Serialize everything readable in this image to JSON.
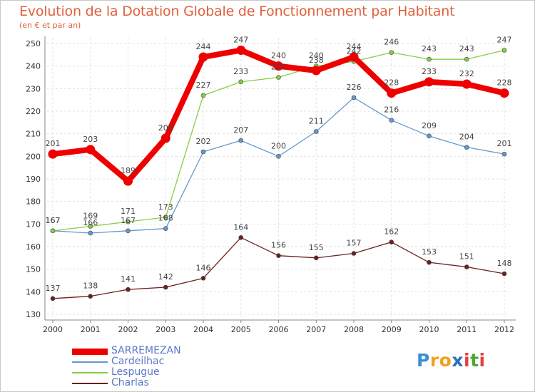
{
  "header": {
    "title": "Evolution de la Dotation Globale de Fonctionnement par Habitant",
    "subtitle": "(en € et par an)"
  },
  "chart_data": {
    "type": "line",
    "title": "Evolution de la Dotation Globale de Fonctionnement par Habitant",
    "subtitle": "(en € et par an)",
    "xlabel": "",
    "ylabel": "",
    "x": [
      2000,
      2001,
      2002,
      2003,
      2004,
      2005,
      2006,
      2007,
      2008,
      2009,
      2010,
      2011,
      2012
    ],
    "ylim": [
      130,
      250
    ],
    "yticks": [
      130,
      140,
      150,
      160,
      170,
      180,
      190,
      200,
      210,
      220,
      230,
      240,
      250
    ],
    "grid": true,
    "legend_position": "bottom-left",
    "series": [
      {
        "name": "SARREMEZAN",
        "color": "#ee0000",
        "values": [
          201,
          203,
          189,
          208,
          244,
          247,
          240,
          238,
          244,
          228,
          233,
          232,
          228
        ]
      },
      {
        "name": "Cardeilhac",
        "color": "#6699cc",
        "values": [
          167,
          166,
          167,
          168,
          202,
          207,
          200,
          211,
          226,
          216,
          209,
          204,
          201
        ]
      },
      {
        "name": "Lespugue",
        "color": "#88cc44",
        "values": [
          167,
          169,
          171,
          173,
          227,
          233,
          235,
          240,
          242,
          246,
          243,
          243,
          247
        ]
      },
      {
        "name": "Charlas",
        "color": "#6b2121",
        "values": [
          137,
          138,
          141,
          142,
          146,
          164,
          156,
          155,
          157,
          162,
          153,
          151,
          148
        ]
      }
    ]
  },
  "brand": {
    "letters": [
      "P",
      "r",
      "o",
      "x",
      "i",
      "t",
      "i"
    ],
    "colors": [
      "#3a8fd6",
      "#f0a020",
      "#f0a020",
      "#2a6fc0",
      "#e04040",
      "#4aa830",
      "#e04040"
    ]
  }
}
